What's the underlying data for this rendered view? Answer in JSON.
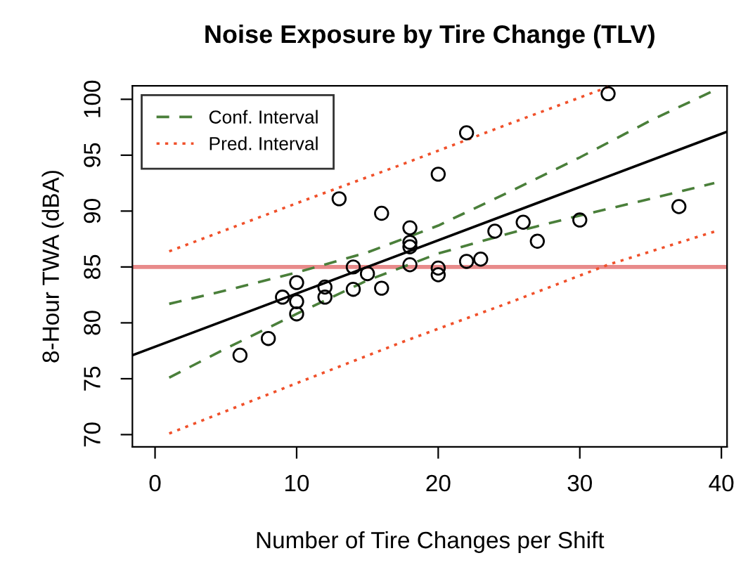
{
  "chart_data": {
    "type": "scatter",
    "title": "Noise Exposure by Tire Change (TLV)",
    "xlabel": "Number of Tire Changes per Shift",
    "ylabel": "8-Hour TWA (dBA)",
    "xlim": [
      -1.6,
      40.4
    ],
    "ylim": [
      68.9,
      101.2
    ],
    "xticks": [
      0,
      10,
      20,
      30,
      40
    ],
    "yticks": [
      70,
      75,
      80,
      85,
      90,
      95,
      100
    ],
    "grid": false,
    "legend": "top left",
    "series": [
      {
        "color": "#000000",
        "marker": "circle",
        "x": [
          6,
          8,
          9,
          10,
          10,
          10,
          12,
          12,
          13,
          14,
          14,
          15,
          16,
          16,
          18,
          18,
          18,
          18,
          20,
          20,
          20,
          22,
          22,
          23,
          24,
          26,
          27,
          30,
          32,
          37
        ],
        "values": [
          77.1,
          78.6,
          82.3,
          83.6,
          81.9,
          80.8,
          83.2,
          82.3,
          91.1,
          85.0,
          83.0,
          84.4,
          89.8,
          83.1,
          88.5,
          87.2,
          86.8,
          85.2,
          93.3,
          84.9,
          84.3,
          97.0,
          85.5,
          85.7,
          88.2,
          89.0,
          87.3,
          89.2,
          100.5,
          90.4
        ]
      },
      {
        "type": "line",
        "color": "#000000",
        "line_style": "solid",
        "x": [
          -1.6,
          40.4
        ],
        "values": [
          77.1,
          97.1
        ]
      },
      {
        "type": "line",
        "name": "Conf. Interval",
        "color": "#4a7f3a",
        "line_style": "dashed",
        "x": [
          1,
          5,
          10,
          15,
          20,
          25,
          30,
          35,
          39.5
        ],
        "values": [
          81.7,
          82.9,
          84.5,
          86.3,
          88.7,
          91.7,
          94.8,
          98.1,
          100.8
        ]
      },
      {
        "type": "line",
        "color": "#4a7f3a",
        "line_style": "dashed",
        "x": [
          1,
          5,
          10,
          15,
          20,
          25,
          30,
          35,
          39.5
        ],
        "values": [
          75.1,
          77.7,
          80.8,
          83.8,
          86.2,
          88.0,
          89.6,
          91.1,
          92.5
        ]
      },
      {
        "type": "line",
        "name": "Pred. Interval",
        "color": "#f0502a",
        "line_style": "dotted",
        "x": [
          1,
          10,
          17.5,
          25,
          32
        ],
        "values": [
          86.4,
          90.7,
          94.2,
          97.8,
          101.1
        ]
      },
      {
        "type": "line",
        "color": "#f0502a",
        "line_style": "dotted",
        "x": [
          1,
          10,
          17.5,
          25,
          32,
          39.6
        ],
        "values": [
          70.1,
          74.6,
          78.3,
          81.8,
          85.2,
          88.2
        ]
      }
    ],
    "ref_lines": [
      {
        "axis": "y",
        "value": 85,
        "color": "#e88a8a",
        "line_style": "solid"
      }
    ]
  }
}
